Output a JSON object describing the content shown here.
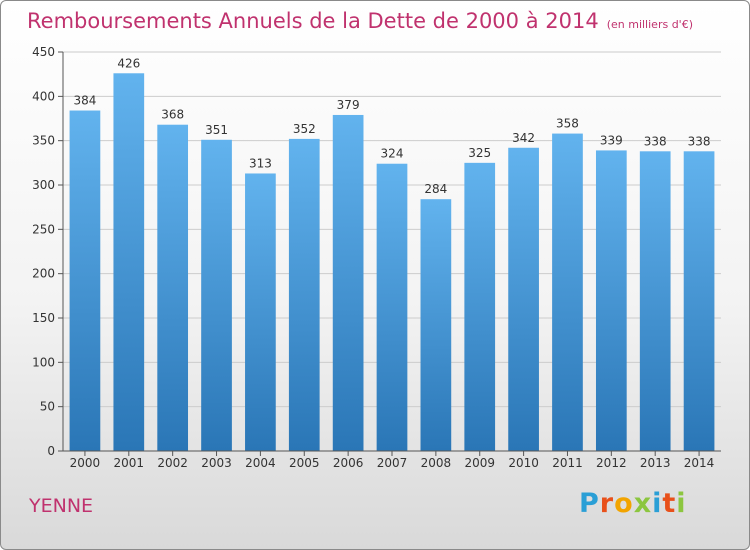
{
  "title": "Remboursements Annuels de la Dette de 2000 à 2014",
  "subtitle": "(en milliers d'€)",
  "commune": "YENNE",
  "brand": {
    "letters": [
      "P",
      "r",
      "o",
      "x",
      "i",
      "t",
      "i"
    ],
    "colors": [
      "#2a9fd6",
      "#e8501a",
      "#f2a400",
      "#8cc63f",
      "#2a9fd6",
      "#e8501a",
      "#8cc63f"
    ]
  },
  "chart_data": {
    "type": "bar",
    "title": "Remboursements Annuels de la Dette de 2000 à 2014",
    "subtitle": "(en milliers d'€)",
    "categories": [
      "2000",
      "2001",
      "2002",
      "2003",
      "2004",
      "2005",
      "2006",
      "2007",
      "2008",
      "2009",
      "2010",
      "2011",
      "2012",
      "2013",
      "2014"
    ],
    "values": [
      384,
      426,
      368,
      351,
      313,
      352,
      379,
      324,
      284,
      325,
      342,
      358,
      339,
      338,
      338
    ],
    "ylim": [
      0,
      450
    ],
    "yticks": [
      0,
      50,
      100,
      150,
      200,
      250,
      300,
      350,
      400,
      450
    ],
    "grid": true,
    "colors": {
      "bar_top": "#62b3ee",
      "bar_bottom": "#2a76b6",
      "grid": "#cccccc",
      "axis_text": "#333333"
    }
  }
}
